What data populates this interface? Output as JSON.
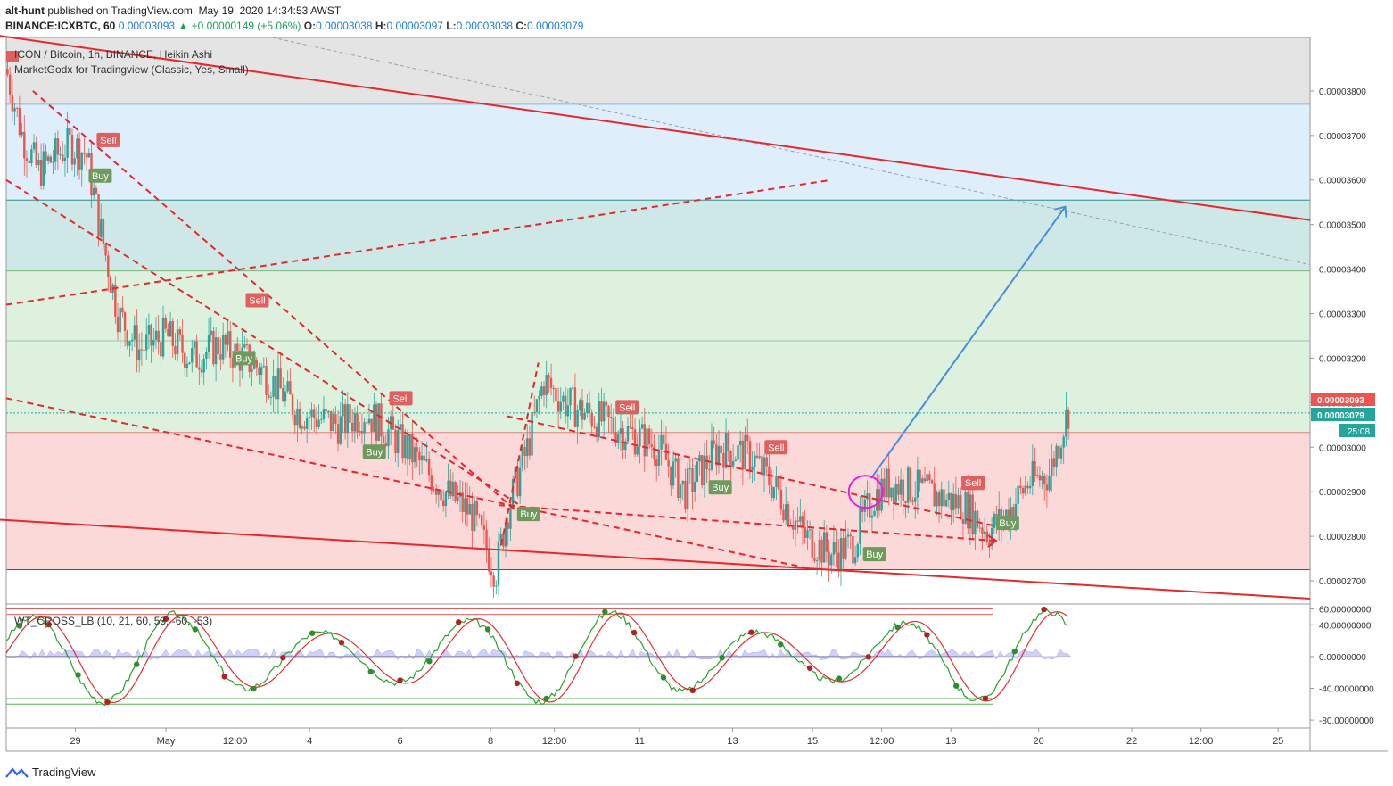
{
  "header": {
    "author": "alt-hunt",
    "published_text": "published on TradingView.com, May 19, 2020 14:34:53 AWST",
    "symbol": "BINANCE:ICXBTC, 60",
    "last": "0.00003093",
    "change": "▲ +0.00000149 (+5.06%)",
    "o_label": "O:",
    "o": "0.00003038",
    "h_label": "H:",
    "h": "0.00003097",
    "l_label": "L:",
    "l": "0.00003038",
    "c_label": "C:",
    "c": "0.00003079"
  },
  "legend": {
    "main": "ICON / Bitcoin, 1h, BINANCE, Heikin Ashi",
    "indicator": "MarketGodx for Tradingview (Classic, Yes, Small)",
    "oscillator": "WT_CROSS_LB (10, 21, 60, 53, -60, -53)"
  },
  "price_badges": {
    "last": "0.00003093",
    "close": "0.00003079",
    "countdown": "25:08"
  },
  "footer": {
    "brand": "TradingView"
  },
  "colors": {
    "up": "#26a69a",
    "down": "#ef5350",
    "red_line": "#e8262b",
    "blue_arrow": "#4a8de0",
    "zone_grey": "#e4e4e4",
    "zone_blue": "#dfeefb",
    "zone_teal": "#cde8e6",
    "zone_green": "#def0de",
    "zone_red": "#fbd9d9",
    "buy": "#6e9a5e",
    "sell": "#e06060"
  },
  "chart_data": [
    {
      "type": "candlestick",
      "title": "ICON / Bitcoin, 1h, BINANCE, Heikin Ashi",
      "x_ticks": [
        "29",
        "May",
        "12:00",
        "4",
        "6",
        "8",
        "12:00",
        "11",
        "13",
        "15",
        "12:00",
        "18",
        "20",
        "22",
        "12:00",
        "25"
      ],
      "y_ticks": [
        "0.00003800",
        "0.00003700",
        "0.00003600",
        "0.00003500",
        "0.00003400",
        "0.00003300",
        "0.00003200",
        "0.00003100",
        "0.00003000",
        "0.00002900",
        "0.00002800",
        "0.00002700"
      ],
      "ylim": [
        2.65e-05,
        3.92e-05
      ],
      "price_path": [
        [
          0,
          3.85e-05
        ],
        [
          0.6,
          3.7e-05
        ],
        [
          1.2,
          3.62e-05
        ],
        [
          1.8,
          3.65e-05
        ],
        [
          2.4,
          3.68e-05
        ],
        [
          3,
          3.66e-05
        ],
        [
          3.5,
          3.5e-05
        ],
        [
          4.2,
          3.3e-05
        ],
        [
          5,
          3.22e-05
        ],
        [
          6,
          3.25e-05
        ],
        [
          7,
          3.2e-05
        ],
        [
          8,
          3.23e-05
        ],
        [
          9.5,
          3.18e-05
        ],
        [
          11,
          3.08e-05
        ],
        [
          12.5,
          3.05e-05
        ],
        [
          13.5,
          3.08e-05
        ],
        [
          15,
          3e-05
        ],
        [
          16.5,
          2.9e-05
        ],
        [
          17.5,
          2.85e-05
        ],
        [
          18.4,
          2.72e-05
        ],
        [
          18.8,
          2.85e-05
        ],
        [
          19.6,
          3e-05
        ],
        [
          20.2,
          3.15e-05
        ],
        [
          21,
          3.1e-05
        ],
        [
          22,
          3.07e-05
        ],
        [
          23.5,
          3.03e-05
        ],
        [
          24.5,
          3e-05
        ],
        [
          25.5,
          2.9e-05
        ],
        [
          26.8,
          3e-05
        ],
        [
          28,
          2.98e-05
        ],
        [
          29,
          2.9e-05
        ],
        [
          30,
          2.8e-05
        ],
        [
          31,
          2.76e-05
        ],
        [
          31.8,
          2.78e-05
        ],
        [
          32.6,
          2.89e-05
        ],
        [
          33.2,
          2.92e-05
        ],
        [
          34,
          2.91e-05
        ],
        [
          35,
          2.89e-05
        ],
        [
          36,
          2.87e-05
        ],
        [
          36.9,
          2.81e-05
        ],
        [
          37.6,
          2.85e-05
        ],
        [
          38.4,
          2.92e-05
        ],
        [
          39.2,
          2.94e-05
        ],
        [
          39.6,
          3.02e-05
        ],
        [
          40,
          3.1e-05
        ]
      ],
      "zones": [
        {
          "name": "grey",
          "from": 3.92e-05,
          "to": 3.77e-05
        },
        {
          "name": "blue",
          "from": 3.77e-05,
          "to": 3.555e-05
        },
        {
          "name": "teal",
          "from": 3.555e-05,
          "to": 3.396e-05
        },
        {
          "name": "green",
          "from": 3.396e-05,
          "to": 3.033e-05
        },
        {
          "name": "red",
          "from": 3.033e-05,
          "to": 2.725e-05
        }
      ],
      "signals": [
        {
          "label": "Sell",
          "t": 3.8,
          "p": 3.69e-05
        },
        {
          "label": "Buy",
          "t": 3.5,
          "p": 3.61e-05
        },
        {
          "label": "Sell",
          "t": 9.4,
          "p": 3.33e-05
        },
        {
          "label": "Buy",
          "t": 8.9,
          "p": 3.2e-05
        },
        {
          "label": "Sell",
          "t": 14.8,
          "p": 3.11e-05
        },
        {
          "label": "Buy",
          "t": 13.8,
          "p": 2.99e-05
        },
        {
          "label": "Buy",
          "t": 19.6,
          "p": 2.85e-05
        },
        {
          "label": "Sell",
          "t": 23.3,
          "p": 3.09e-05
        },
        {
          "label": "Buy",
          "t": 26.8,
          "p": 2.91e-05
        },
        {
          "label": "Sell",
          "t": 28.9,
          "p": 3e-05
        },
        {
          "label": "Buy",
          "t": 32.6,
          "p": 2.76e-05
        },
        {
          "label": "Sell",
          "t": 36.3,
          "p": 2.92e-05
        },
        {
          "label": "Buy",
          "t": 37.6,
          "p": 2.83e-05
        }
      ]
    },
    {
      "type": "line",
      "title": "WT_CROSS_LB (10, 21, 60, 53, -60, -53)",
      "y_ticks": [
        "60.00000000",
        "40.00000000",
        "0.00000000",
        "-40.00000000",
        "-80.00000000"
      ],
      "ylim": [
        -90,
        65
      ],
      "levels": [
        60,
        53,
        -53,
        -60
      ]
    }
  ]
}
